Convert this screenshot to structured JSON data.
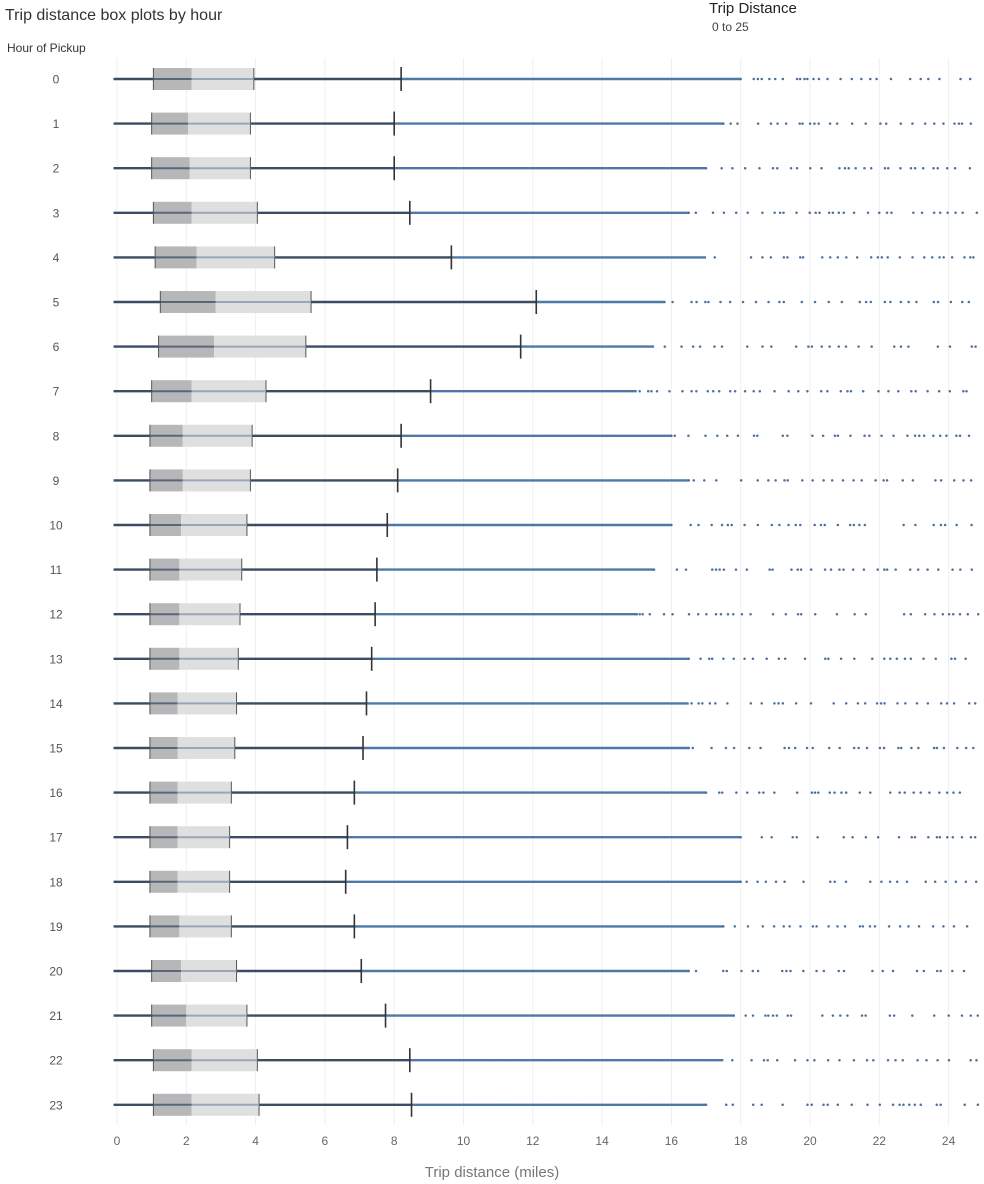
{
  "title": "Trip distance box plots by hour",
  "filter": {
    "title": "Trip Distance",
    "range": "0 to 25"
  },
  "row_header": "Hour of Pickup",
  "colors": {
    "lower_box": "#b7b7b9",
    "upper_box": "#dfdfe0",
    "whisker": "#3c4c63",
    "tail_line": "#4e79a7",
    "outlier": "#4e6f9c",
    "median_line": "#9aa6b6",
    "grid": "#efefef"
  },
  "chart_data": {
    "type": "box",
    "title": "Trip distance box plots by hour",
    "xlabel": "Trip distance (miles)",
    "ylabel": "Hour of Pickup",
    "xlim": [
      -0.2,
      25
    ],
    "x_ticks": [
      0,
      2,
      4,
      6,
      8,
      10,
      12,
      14,
      16,
      18,
      20,
      22,
      24
    ],
    "grid": true,
    "categories": [
      "0",
      "1",
      "2",
      "3",
      "4",
      "5",
      "6",
      "7",
      "8",
      "9",
      "10",
      "11",
      "12",
      "13",
      "14",
      "15",
      "16",
      "17",
      "18",
      "19",
      "20",
      "21",
      "22",
      "23"
    ],
    "boxes": [
      {
        "hour": "0",
        "q1": 1.05,
        "median": 2.15,
        "q3": 3.95,
        "upper_whisker": 8.2,
        "dense_from": 18,
        "max": 24.9
      },
      {
        "hour": "1",
        "q1": 1.0,
        "median": 2.05,
        "q3": 3.85,
        "upper_whisker": 8.0,
        "dense_from": 17.5,
        "max": 24.8
      },
      {
        "hour": "2",
        "q1": 1.0,
        "median": 2.1,
        "q3": 3.85,
        "upper_whisker": 8.0,
        "dense_from": 17,
        "max": 24.9
      },
      {
        "hour": "3",
        "q1": 1.05,
        "median": 2.15,
        "q3": 4.05,
        "upper_whisker": 8.45,
        "dense_from": 16.5,
        "max": 24.9
      },
      {
        "hour": "4",
        "q1": 1.1,
        "median": 2.3,
        "q3": 4.55,
        "upper_whisker": 9.65,
        "dense_from": 17,
        "max": 24.8
      },
      {
        "hour": "5",
        "q1": 1.25,
        "median": 2.85,
        "q3": 5.6,
        "upper_whisker": 12.1,
        "dense_from": 15.8,
        "max": 24.8
      },
      {
        "hour": "6",
        "q1": 1.2,
        "median": 2.8,
        "q3": 5.45,
        "upper_whisker": 11.65,
        "dense_from": 15.5,
        "max": 24.9
      },
      {
        "hour": "7",
        "q1": 1.0,
        "median": 2.15,
        "q3": 4.3,
        "upper_whisker": 9.05,
        "dense_from": 15,
        "max": 24.6
      },
      {
        "hour": "8",
        "q1": 0.95,
        "median": 1.9,
        "q3": 3.9,
        "upper_whisker": 8.2,
        "dense_from": 16,
        "max": 24.8
      },
      {
        "hour": "9",
        "q1": 0.95,
        "median": 1.9,
        "q3": 3.85,
        "upper_whisker": 8.1,
        "dense_from": 16.5,
        "max": 24.7
      },
      {
        "hour": "10",
        "q1": 0.95,
        "median": 1.85,
        "q3": 3.75,
        "upper_whisker": 7.8,
        "dense_from": 16,
        "max": 24.9
      },
      {
        "hour": "11",
        "q1": 0.95,
        "median": 1.8,
        "q3": 3.6,
        "upper_whisker": 7.5,
        "dense_from": 15.5,
        "max": 24.9
      },
      {
        "hour": "12",
        "q1": 0.95,
        "median": 1.8,
        "q3": 3.55,
        "upper_whisker": 7.45,
        "dense_from": 15,
        "max": 24.9
      },
      {
        "hour": "13",
        "q1": 0.95,
        "median": 1.8,
        "q3": 3.5,
        "upper_whisker": 7.35,
        "dense_from": 16.5,
        "max": 24.9
      },
      {
        "hour": "14",
        "q1": 0.95,
        "median": 1.75,
        "q3": 3.45,
        "upper_whisker": 7.2,
        "dense_from": 16.5,
        "max": 24.9
      },
      {
        "hour": "15",
        "q1": 0.95,
        "median": 1.75,
        "q3": 3.4,
        "upper_whisker": 7.1,
        "dense_from": 16.5,
        "max": 24.9
      },
      {
        "hour": "16",
        "q1": 0.95,
        "median": 1.75,
        "q3": 3.3,
        "upper_whisker": 6.85,
        "dense_from": 17,
        "max": 24.8
      },
      {
        "hour": "17",
        "q1": 0.95,
        "median": 1.75,
        "q3": 3.25,
        "upper_whisker": 6.65,
        "dense_from": 18,
        "max": 24.9
      },
      {
        "hour": "18",
        "q1": 0.95,
        "median": 1.75,
        "q3": 3.25,
        "upper_whisker": 6.6,
        "dense_from": 18,
        "max": 24.9
      },
      {
        "hour": "19",
        "q1": 0.95,
        "median": 1.8,
        "q3": 3.3,
        "upper_whisker": 6.85,
        "dense_from": 17.5,
        "max": 24.8
      },
      {
        "hour": "20",
        "q1": 1.0,
        "median": 1.85,
        "q3": 3.45,
        "upper_whisker": 7.05,
        "dense_from": 16.5,
        "max": 24.8
      },
      {
        "hour": "21",
        "q1": 1.0,
        "median": 2.0,
        "q3": 3.75,
        "upper_whisker": 7.75,
        "dense_from": 17.8,
        "max": 24.9
      },
      {
        "hour": "22",
        "q1": 1.05,
        "median": 2.15,
        "q3": 4.05,
        "upper_whisker": 8.45,
        "dense_from": 17.5,
        "max": 24.9
      },
      {
        "hour": "23",
        "q1": 1.05,
        "median": 2.15,
        "q3": 4.1,
        "upper_whisker": 8.5,
        "dense_from": 17,
        "max": 24.9
      }
    ]
  }
}
